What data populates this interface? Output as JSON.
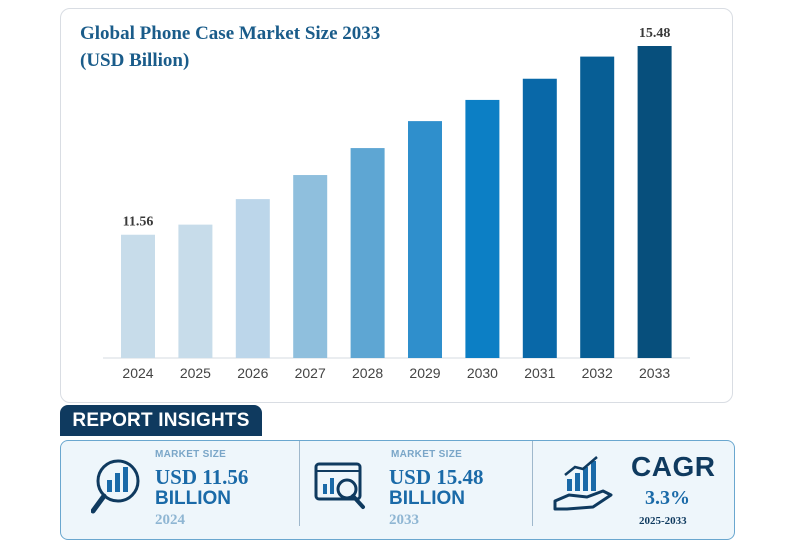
{
  "chart_data": {
    "type": "bar",
    "title": "Global Phone Case Market Size 2033 (USD Billion)",
    "categories": [
      "2024",
      "2025",
      "2026",
      "2027",
      "2028",
      "2029",
      "2030",
      "2031",
      "2032",
      "2033"
    ],
    "values": [
      11.56,
      11.77,
      12.3,
      12.8,
      13.36,
      13.92,
      14.36,
      14.8,
      15.26,
      15.48
    ],
    "data_labels": {
      "first": "11.56",
      "last": "15.48"
    },
    "colors": [
      "#c7dcea",
      "#c7dcea",
      "#bcd6ea",
      "#8fbfdd",
      "#5ea6d3",
      "#2f8fcc",
      "#0c7fc5",
      "#0968a8",
      "#075e95",
      "#074f7c"
    ],
    "ylim": [
      9.0,
      15.48
    ],
    "grid": false,
    "legend": "none"
  },
  "insights": {
    "tab_label": "REPORT INSIGHTS",
    "cards": [
      {
        "label": "MARKET SIZE",
        "value_line1": "USD 11.56",
        "value_line2": "BILLION",
        "year": "2024",
        "icon": "magnifier-bar-chart-icon"
      },
      {
        "label": "MARKET SIZE",
        "value_line1": "USD 15.48",
        "value_line2": "BILLION",
        "year": "2033",
        "icon": "monitor-analytics-icon"
      }
    ],
    "cagr": {
      "title": "CAGR",
      "value": "3.3%",
      "range": "2025-2033",
      "icon": "hand-growth-chart-icon"
    },
    "colors": {
      "accent": "#1a6aa8",
      "dark": "#0f3a5f",
      "light": "#7aa6c8",
      "panel_bg": "#eef6fb"
    }
  }
}
